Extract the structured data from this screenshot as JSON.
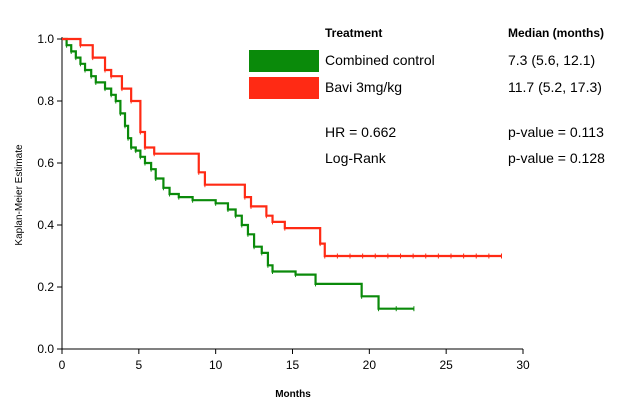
{
  "chart_data": {
    "type": "line",
    "step": true,
    "xlabel": "Months",
    "ylabel": "Kaplan-Meier Estimate",
    "xlim": [
      0,
      30
    ],
    "ylim": [
      0,
      1
    ],
    "x_ticks": [
      0,
      5,
      10,
      15,
      20,
      25,
      30
    ],
    "y_ticks": [
      0.0,
      0.2,
      0.4,
      0.6,
      0.8,
      1.0
    ],
    "x_tick_labels": [
      "0",
      "5",
      "10",
      "15",
      "20",
      "25",
      "30"
    ],
    "y_tick_labels": [
      "0.0",
      "0.2",
      "0.4",
      "0.6",
      "0.8",
      "1.0"
    ],
    "grid": false,
    "legend": {
      "treatment_header": "Treatment",
      "median_header": "Median (months)"
    },
    "series": [
      {
        "name": "Combined control",
        "color": "#0a8a0a",
        "median_text": "7.3  (5.6, 12.1)",
        "x": [
          0,
          0.3,
          0.6,
          0.9,
          1.2,
          1.5,
          1.9,
          2.2,
          2.8,
          3.2,
          3.5,
          3.8,
          4.1,
          4.3,
          4.5,
          4.8,
          5.1,
          5.4,
          5.8,
          6.1,
          6.6,
          7.0,
          7.6,
          8.5,
          10.0,
          10.8,
          11.3,
          11.7,
          12.1,
          12.5,
          13.0,
          13.4,
          13.7,
          15.2,
          16.5,
          19.5,
          20.6,
          22.9
        ],
        "y": [
          1.0,
          0.98,
          0.96,
          0.94,
          0.92,
          0.9,
          0.88,
          0.86,
          0.84,
          0.82,
          0.8,
          0.76,
          0.72,
          0.68,
          0.65,
          0.64,
          0.62,
          0.6,
          0.58,
          0.55,
          0.52,
          0.5,
          0.49,
          0.48,
          0.47,
          0.45,
          0.43,
          0.4,
          0.37,
          0.33,
          0.31,
          0.27,
          0.25,
          0.24,
          0.21,
          0.17,
          0.13,
          0.13
        ]
      },
      {
        "name": "Bavi 3mg/kg",
        "color": "#ff2a14",
        "median_text": "11.7  (5.2,  17.3)",
        "x": [
          0,
          1.2,
          2.0,
          2.8,
          3.2,
          3.9,
          4.5,
          5.1,
          5.4,
          6.0,
          8.9,
          9.3,
          11.9,
          12.3,
          13.3,
          13.7,
          14.5,
          16.8,
          17.1,
          28.6
        ],
        "y": [
          1.0,
          0.98,
          0.94,
          0.9,
          0.88,
          0.84,
          0.8,
          0.7,
          0.65,
          0.63,
          0.57,
          0.53,
          0.49,
          0.46,
          0.43,
          0.41,
          0.39,
          0.34,
          0.3,
          0.3
        ]
      }
    ],
    "annotations": [
      {
        "label": "HR = 0.662",
        "pvalue": "p-value = 0.113"
      },
      {
        "label": "Log-Rank",
        "pvalue": "p-value = 0.128"
      }
    ]
  }
}
